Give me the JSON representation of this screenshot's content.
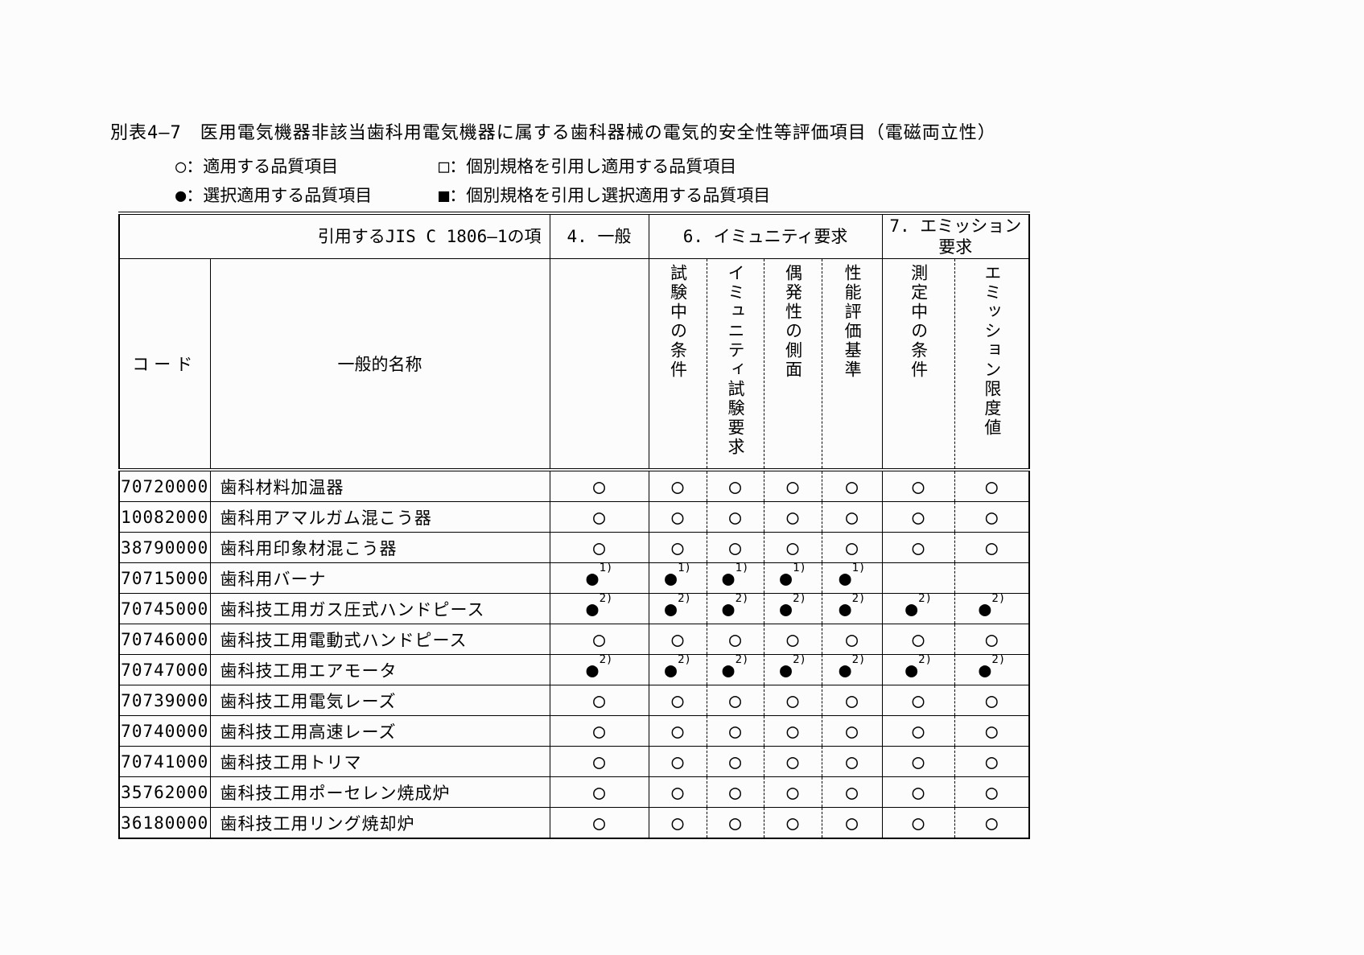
{
  "page": {
    "title": "別表4—7　医用電気機器非該当歯科用電気機器に属する歯科器械の電気的安全性等評価項目（電磁両立性）"
  },
  "legend": {
    "items": [
      {
        "symbol": "○",
        "text": "：適用する品質項目"
      },
      {
        "symbol": "□",
        "text": "：個別規格を引用し適用する品質項目"
      },
      {
        "symbol": "●",
        "text": "：選択適用する品質項目"
      },
      {
        "symbol": "■",
        "text": "：個別規格を引用し選択適用する品質項目"
      }
    ]
  },
  "table": {
    "ref_header": "引用するJIS C 1806—1の項",
    "group_headers": {
      "general": "4. 一般",
      "immunity": "6. イミュニティ要求",
      "emission": "7. エミッション要求"
    },
    "column_headers": {
      "code": "コード",
      "name": "一般的名称"
    },
    "subcolumn_headers": [
      "試験中の条件",
      "イミュニティ試験要求",
      "偶発性の側面",
      "性能評価基準",
      "測定中の条件",
      "エミッション限度値"
    ],
    "rows": [
      {
        "code": "70720000",
        "name": "歯科材料加温器",
        "marks": [
          "○",
          "○",
          "○",
          "○",
          "○",
          "○",
          "○"
        ]
      },
      {
        "code": "10082000",
        "name": "歯科用アマルガム混こう器",
        "marks": [
          "○",
          "○",
          "○",
          "○",
          "○",
          "○",
          "○"
        ]
      },
      {
        "code": "38790000",
        "name": "歯科用印象材混こう器",
        "marks": [
          "○",
          "○",
          "○",
          "○",
          "○",
          "○",
          "○"
        ]
      },
      {
        "code": "70715000",
        "name": "歯科用バーナ",
        "marks": [
          "●1)",
          "●1)",
          "●1)",
          "●1)",
          "●1)",
          "",
          ""
        ]
      },
      {
        "code": "70745000",
        "name": "歯科技工用ガス圧式ハンドピース",
        "marks": [
          "●2)",
          "●2)",
          "●2)",
          "●2)",
          "●2)",
          "●2)",
          "●2)"
        ]
      },
      {
        "code": "70746000",
        "name": "歯科技工用電動式ハンドピース",
        "marks": [
          "○",
          "○",
          "○",
          "○",
          "○",
          "○",
          "○"
        ]
      },
      {
        "code": "70747000",
        "name": "歯科技工用エアモータ",
        "marks": [
          "●2)",
          "●2)",
          "●2)",
          "●2)",
          "●2)",
          "●2)",
          "●2)"
        ]
      },
      {
        "code": "70739000",
        "name": "歯科技工用電気レーズ",
        "marks": [
          "○",
          "○",
          "○",
          "○",
          "○",
          "○",
          "○"
        ]
      },
      {
        "code": "70740000",
        "name": "歯科技工用高速レーズ",
        "marks": [
          "○",
          "○",
          "○",
          "○",
          "○",
          "○",
          "○"
        ]
      },
      {
        "code": "70741000",
        "name": "歯科技工用トリマ",
        "marks": [
          "○",
          "○",
          "○",
          "○",
          "○",
          "○",
          "○"
        ]
      },
      {
        "code": "35762000",
        "name": "歯科技工用ポーセレン焼成炉",
        "marks": [
          "○",
          "○",
          "○",
          "○",
          "○",
          "○",
          "○"
        ]
      },
      {
        "code": "36180000",
        "name": "歯科技工用リング焼却炉",
        "marks": [
          "○",
          "○",
          "○",
          "○",
          "○",
          "○",
          "○"
        ]
      }
    ]
  }
}
